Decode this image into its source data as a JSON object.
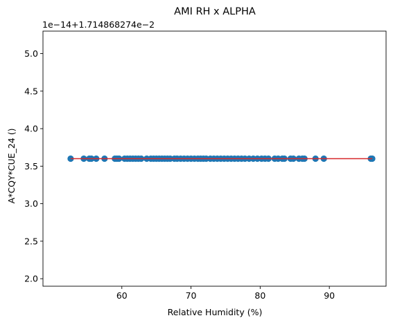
{
  "chart_data": {
    "type": "scatter",
    "title": "AMI RH x ALPHA",
    "xlabel": "Relative Humidity (%)",
    "ylabel": "A*CQY*CUE_24 ()",
    "axis_offset_label": "1e−14+1.714868274e−2",
    "xlim": [
      48.6,
      98.2
    ],
    "ylim": [
      1.9,
      5.3
    ],
    "x_ticks": [
      60,
      70,
      80,
      90
    ],
    "x_tick_labels": [
      "60",
      "70",
      "80",
      "90"
    ],
    "y_ticks": [
      2.0,
      2.5,
      3.0,
      3.5,
      4.0,
      4.5,
      5.0
    ],
    "y_tick_labels": [
      "2.0",
      "2.5",
      "3.0",
      "3.5",
      "4.0",
      "4.5",
      "5.0"
    ],
    "grid": false,
    "legend": "none",
    "series": [
      {
        "kind": "points",
        "color": "#1f77b4",
        "points": [
          [
            52.6,
            3.6
          ],
          [
            54.5,
            3.6
          ],
          [
            55.3,
            3.6
          ],
          [
            55.6,
            3.6
          ],
          [
            56.3,
            3.6
          ],
          [
            57.5,
            3.6
          ],
          [
            59.0,
            3.6
          ],
          [
            59.3,
            3.6
          ],
          [
            59.6,
            3.6
          ],
          [
            60.4,
            3.6
          ],
          [
            60.8,
            3.6
          ],
          [
            61.2,
            3.6
          ],
          [
            61.6,
            3.6
          ],
          [
            62.0,
            3.6
          ],
          [
            62.4,
            3.6
          ],
          [
            62.8,
            3.6
          ],
          [
            63.6,
            3.6
          ],
          [
            64.2,
            3.6
          ],
          [
            64.6,
            3.6
          ],
          [
            65.0,
            3.6
          ],
          [
            65.4,
            3.6
          ],
          [
            65.8,
            3.6
          ],
          [
            66.2,
            3.6
          ],
          [
            66.6,
            3.6
          ],
          [
            67.0,
            3.6
          ],
          [
            67.6,
            3.6
          ],
          [
            68.0,
            3.6
          ],
          [
            68.5,
            3.6
          ],
          [
            69.0,
            3.6
          ],
          [
            69.5,
            3.6
          ],
          [
            70.0,
            3.6
          ],
          [
            70.5,
            3.6
          ],
          [
            71.0,
            3.6
          ],
          [
            71.4,
            3.6
          ],
          [
            71.8,
            3.6
          ],
          [
            72.2,
            3.6
          ],
          [
            72.8,
            3.6
          ],
          [
            73.3,
            3.6
          ],
          [
            73.8,
            3.6
          ],
          [
            74.3,
            3.6
          ],
          [
            74.8,
            3.6
          ],
          [
            75.3,
            3.6
          ],
          [
            75.8,
            3.6
          ],
          [
            76.3,
            3.6
          ],
          [
            76.8,
            3.6
          ],
          [
            77.3,
            3.6
          ],
          [
            77.8,
            3.6
          ],
          [
            78.4,
            3.6
          ],
          [
            79.0,
            3.6
          ],
          [
            79.6,
            3.6
          ],
          [
            80.2,
            3.6
          ],
          [
            80.7,
            3.6
          ],
          [
            81.2,
            3.6
          ],
          [
            82.1,
            3.6
          ],
          [
            82.6,
            3.6
          ],
          [
            83.2,
            3.6
          ],
          [
            83.5,
            3.6
          ],
          [
            84.4,
            3.6
          ],
          [
            84.8,
            3.6
          ],
          [
            85.6,
            3.6
          ],
          [
            86.1,
            3.6
          ],
          [
            86.4,
            3.6
          ],
          [
            88.0,
            3.6
          ],
          [
            89.2,
            3.6
          ],
          [
            96.0,
            3.6
          ],
          [
            96.2,
            3.6
          ]
        ]
      },
      {
        "kind": "line",
        "color": "#d62728",
        "points": [
          [
            52.6,
            3.6
          ],
          [
            96.2,
            3.6
          ]
        ]
      }
    ]
  }
}
